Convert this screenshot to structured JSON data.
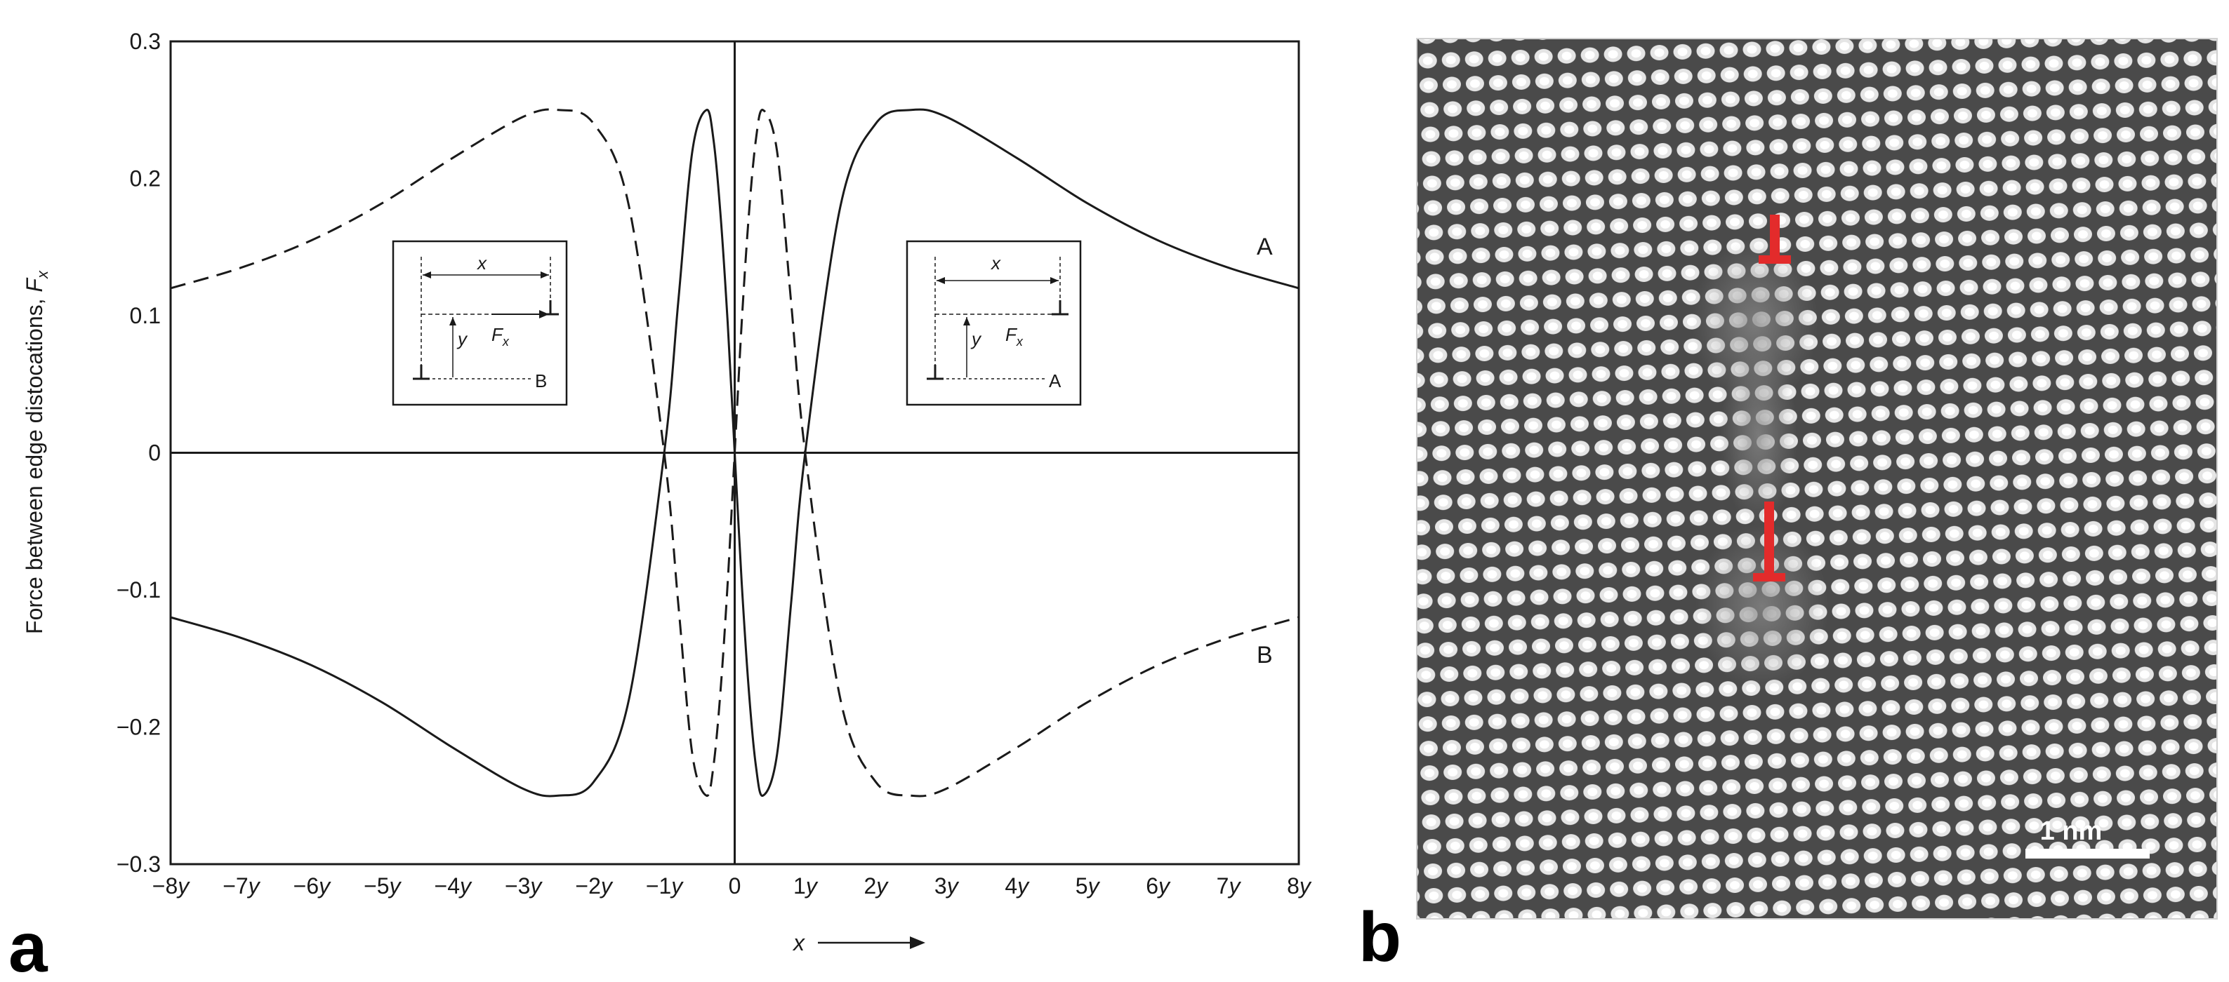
{
  "panel_a": {
    "letter": "a",
    "inset_left": {
      "x_label": "x",
      "y_label": "y",
      "f_label": "F",
      "f_sub": "x",
      "end_letter": "B"
    },
    "inset_right": {
      "x_label": "x",
      "y_label": "y",
      "f_label": "F",
      "f_sub": "x",
      "end_letter": "A"
    },
    "arrow_symbol": "→"
  },
  "panel_b": {
    "letter": "b",
    "scale_bar_label": "1 nm",
    "lattice_color_bright": "#f2f2f2",
    "lattice_color_dark": "#4a4a4a",
    "dislocation_marker_color": "#e32b2b",
    "scale_bar_color": "#ffffff",
    "dislocation_markers": 2
  },
  "chart_data": {
    "type": "line",
    "title": "",
    "ylabel": "Force between edge distocations, ",
    "ylabel_symbol": "F",
    "ylabel_sub": "x",
    "xlabel": "x",
    "xlim": [
      -8,
      8
    ],
    "ylim": [
      -0.3,
      0.3
    ],
    "xtick_values": [
      -8,
      -7,
      -6,
      -5,
      -4,
      -3,
      -2,
      -1,
      0,
      1,
      2,
      3,
      4,
      5,
      6,
      7,
      8
    ],
    "xtick_labels": [
      "−8y",
      "−7y",
      "−6y",
      "−5y",
      "−4y",
      "−3y",
      "−2y",
      "−1y",
      "0",
      "1y",
      "2y",
      "3y",
      "4y",
      "5y",
      "6y",
      "7y",
      "8y"
    ],
    "ytick_values": [
      -0.3,
      -0.2,
      -0.1,
      0,
      0.1,
      0.2,
      0.3
    ],
    "ytick_labels": [
      "−0.3",
      "−0.2",
      "−0.1",
      "0",
      "0.1",
      "0.2",
      "0.3"
    ],
    "grid": false,
    "series": [
      {
        "name": "A",
        "style": "solid",
        "x": [
          -8,
          -7,
          -6,
          -5,
          -4,
          -3,
          -2.5,
          -2,
          -1.5,
          -1,
          -0.8,
          -0.6,
          -0.4,
          -0.3,
          -0.2,
          -0.1,
          0,
          0.1,
          0.2,
          0.3,
          0.4,
          0.6,
          0.8,
          1,
          1.5,
          2,
          2.5,
          3,
          4,
          5,
          6,
          7,
          8
        ],
        "y": [
          -0.12,
          -0.135,
          -0.155,
          -0.182,
          -0.215,
          -0.245,
          -0.25,
          -0.24,
          -0.18,
          0,
          0.11,
          0.22,
          0.25,
          0.228,
          0.173,
          0.095,
          0,
          -0.095,
          -0.173,
          -0.228,
          -0.25,
          -0.22,
          -0.11,
          0,
          0.18,
          0.24,
          0.25,
          0.245,
          0.215,
          0.182,
          0.155,
          0.135,
          0.12
        ]
      },
      {
        "name": "B",
        "style": "dashed",
        "x": [
          -8,
          -7,
          -6,
          -5,
          -4,
          -3,
          -2.5,
          -2,
          -1.5,
          -1,
          -0.8,
          -0.6,
          -0.4,
          -0.3,
          -0.2,
          -0.1,
          0,
          0.1,
          0.2,
          0.3,
          0.4,
          0.6,
          0.8,
          1,
          1.5,
          2,
          2.5,
          3,
          4,
          5,
          6,
          7,
          8
        ],
        "y": [
          0.12,
          0.135,
          0.155,
          0.182,
          0.215,
          0.245,
          0.25,
          0.24,
          0.18,
          0,
          -0.11,
          -0.22,
          -0.25,
          -0.228,
          -0.173,
          -0.095,
          0,
          0.095,
          0.173,
          0.228,
          0.25,
          0.22,
          0.11,
          0,
          -0.18,
          -0.24,
          -0.25,
          -0.245,
          -0.215,
          -0.182,
          -0.155,
          -0.135,
          -0.12
        ]
      }
    ]
  }
}
